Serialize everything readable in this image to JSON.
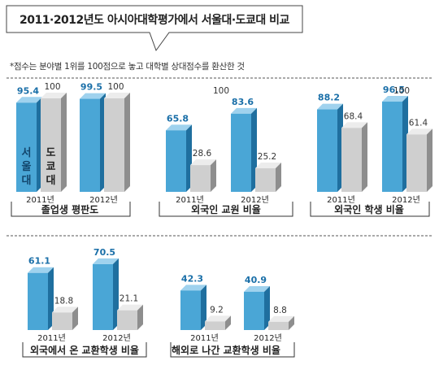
{
  "title": "2011·2012년도 아시아대학평가에서 서울대·도쿄대 비교",
  "note": "*점수는 분야별 1위를 100점으로 놓고 대학별 상대점수를 환산한 것",
  "reference_label": "100",
  "colors": {
    "seoul_front": "#4aa6d6",
    "seoul_side": "#1f6f9f",
    "seoul_top": "#9fd2ee",
    "tokyo_front": "#cfcfcf",
    "tokyo_side": "#8e8e8e",
    "tokyo_top": "#ececec",
    "value_seoul": "#1a6fa8",
    "value_tokyo": "#333333",
    "divider": "#555555"
  },
  "legend": {
    "seoul": "서울대",
    "tokyo": "도쿄대"
  },
  "chart_data": [
    {
      "type": "bar",
      "title": "졸업생 평판도",
      "categories": [
        "2011년",
        "2012년"
      ],
      "series": [
        {
          "name": "서울대",
          "values": [
            95.4,
            99.5
          ]
        },
        {
          "name": "도쿄대",
          "values": [
            100,
            100
          ]
        }
      ],
      "ylim": [
        0,
        100
      ]
    },
    {
      "type": "bar",
      "title": "외국인 교원 비율",
      "categories": [
        "2011년",
        "2012년"
      ],
      "series": [
        {
          "name": "서울대",
          "values": [
            65.8,
            83.6
          ]
        },
        {
          "name": "도쿄대",
          "values": [
            28.6,
            25.2
          ]
        }
      ],
      "ylim": [
        0,
        100
      ]
    },
    {
      "type": "bar",
      "title": "외국인 학생 비율",
      "categories": [
        "2011년",
        "2012년"
      ],
      "series": [
        {
          "name": "서울대",
          "values": [
            88.2,
            96.5
          ]
        },
        {
          "name": "도쿄대",
          "values": [
            68.4,
            61.4
          ]
        }
      ],
      "ylim": [
        0,
        100
      ]
    },
    {
      "type": "bar",
      "title": "외국에서 온 교환학생 비율",
      "categories": [
        "2011년",
        "2012년"
      ],
      "series": [
        {
          "name": "서울대",
          "values": [
            61.1,
            70.5
          ]
        },
        {
          "name": "도쿄대",
          "values": [
            18.8,
            21.1
          ]
        }
      ],
      "ylim": [
        0,
        100
      ]
    },
    {
      "type": "bar",
      "title": "해외로 나간 교환학생 비율",
      "categories": [
        "2011년",
        "2012년"
      ],
      "series": [
        {
          "name": "서울대",
          "values": [
            42.3,
            40.9
          ]
        },
        {
          "name": "도쿄대",
          "values": [
            9.2,
            8.8
          ]
        }
      ],
      "ylim": [
        0,
        100
      ]
    }
  ]
}
